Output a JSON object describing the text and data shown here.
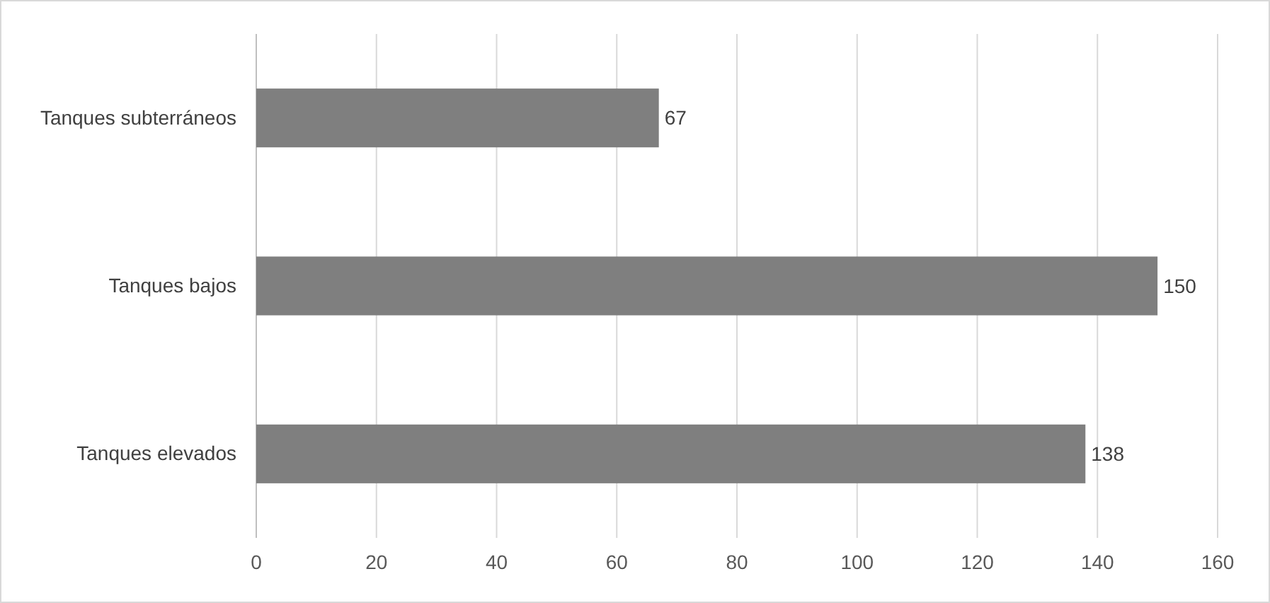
{
  "chart_data": {
    "type": "bar",
    "orientation": "horizontal",
    "categories": [
      "Tanques subterráneos",
      "Tanques bajos",
      "Tanques elevados"
    ],
    "values": [
      67,
      150,
      138
    ],
    "color": "#7f7f7f",
    "xlim": [
      0,
      160
    ],
    "xticks": [
      0,
      20,
      40,
      60,
      80,
      100,
      120,
      140,
      160
    ],
    "grid": "x",
    "data_labels": true
  }
}
